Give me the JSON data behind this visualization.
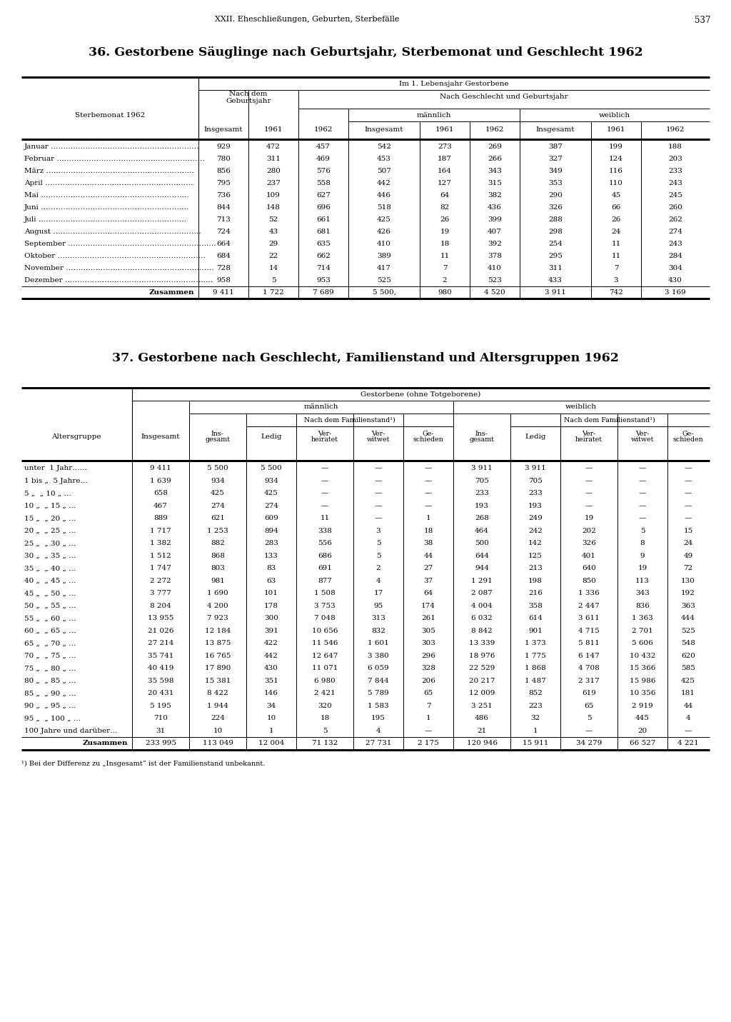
{
  "page_header": "XXII. Eheschließungen, Geburten, Sterbefälle",
  "page_number": "537",
  "table1_title": "36. Gestorbene Säuglinge nach Geburtsjahr, Sterbemonat und Geschlecht 1962",
  "table1_rows": [
    [
      "Januar",
      "929",
      "472",
      "457",
      "542",
      "273",
      "269",
      "387",
      "199",
      "188"
    ],
    [
      "Februar",
      "780",
      "311",
      "469",
      "453",
      "187",
      "266",
      "327",
      "124",
      "203"
    ],
    [
      "März",
      "856",
      "280",
      "576",
      "507",
      "164",
      "343",
      "349",
      "116",
      "233"
    ],
    [
      "April",
      "795",
      "237",
      "558",
      "442",
      "127",
      "315",
      "353",
      "110",
      "243"
    ],
    [
      "Mai",
      "736",
      "109",
      "627",
      "446",
      "64",
      "382",
      "290",
      "45",
      "245"
    ],
    [
      "Juni",
      "844",
      "148",
      "696",
      "518",
      "82",
      "436",
      "326",
      "66",
      "260"
    ],
    [
      "Juli",
      "713",
      "52",
      "661",
      "425",
      "26",
      "399",
      "288",
      "26",
      "262"
    ],
    [
      "August",
      "724",
      "43",
      "681",
      "426",
      "19",
      "407",
      "298",
      "24",
      "274"
    ],
    [
      "September",
      "664",
      "29",
      "635",
      "410",
      "18",
      "392",
      "254",
      "11",
      "243"
    ],
    [
      "Oktober",
      "684",
      "22",
      "662",
      "389",
      "11",
      "378",
      "295",
      "11",
      "284"
    ],
    [
      "November",
      "728",
      "14",
      "714",
      "417",
      "7",
      "410",
      "311",
      "7",
      "304"
    ],
    [
      "Dezember",
      "958",
      "5",
      "953",
      "525",
      "2",
      "523",
      "433",
      "3",
      "430"
    ]
  ],
  "table1_sum": [
    "Zusammen",
    "9 411",
    "1 722",
    "7 689",
    "5 500,",
    "980",
    "4 520",
    "3 911",
    "742",
    "3 169"
  ],
  "table2_title": "37. Gestorbene nach Geschlecht, Familienstand und Altersgruppen 1962",
  "table2_rows": [
    [
      "unter  1 Jahr……",
      "9 411",
      "5 500",
      "5 500",
      "—",
      "—",
      "—",
      "3 911",
      "3 911",
      "—",
      "—",
      "—"
    ],
    [
      "1 bis „  5 Jahre…",
      "1 639",
      "934",
      "934",
      "—",
      "—",
      "—",
      "705",
      "705",
      "—",
      "—",
      "—"
    ],
    [
      "5 „  „ 10 „ …",
      "658",
      "425",
      "425",
      "—",
      "—",
      "—",
      "233",
      "233",
      "—",
      "—",
      "—"
    ],
    [
      "10 „  „ 15 „ …",
      "467",
      "274",
      "274",
      "—",
      "—",
      "—",
      "193",
      "193",
      "—",
      "—",
      "—"
    ],
    [
      "15 „  „ 20 „ …",
      "889",
      "621",
      "609",
      "11",
      "—",
      "1",
      "268",
      "249",
      "19",
      "—",
      "—"
    ],
    [
      "20 „  „ 25 „ …",
      "1 717",
      "1 253",
      "894",
      "338",
      "3",
      "18",
      "464",
      "242",
      "202",
      "5",
      "15"
    ],
    [
      "25 „  „ 30 „ …",
      "1 382",
      "882",
      "283",
      "556",
      "5",
      "38",
      "500",
      "142",
      "326",
      "8",
      "24"
    ],
    [
      "30 „  „ 35 „ …",
      "1 512",
      "868",
      "133",
      "686",
      "5",
      "44",
      "644",
      "125",
      "401",
      "9",
      "49"
    ],
    [
      "35 „  „ 40 „ …",
      "1 747",
      "803",
      "83",
      "691",
      "2",
      "27",
      "944",
      "213",
      "640",
      "19",
      "72"
    ],
    [
      "40 „  „ 45 „ …",
      "2 272",
      "981",
      "63",
      "877",
      "4",
      "37",
      "1 291",
      "198",
      "850",
      "113",
      "130"
    ],
    [
      "45 „  „ 50 „ …",
      "3 777",
      "1 690",
      "101",
      "1 508",
      "17",
      "64",
      "2 087",
      "216",
      "1 336",
      "343",
      "192"
    ],
    [
      "50 „  „ 55 „ …",
      "8 204",
      "4 200",
      "178",
      "3 753",
      "95",
      "174",
      "4 004",
      "358",
      "2 447",
      "836",
      "363"
    ],
    [
      "55 „  „ 60 „ …",
      "13 955",
      "7 923",
      "300",
      "7 048",
      "313",
      "261",
      "6 032",
      "614",
      "3 611",
      "1 363",
      "444"
    ],
    [
      "60 „  „ 65 „ …",
      "21 026",
      "12 184",
      "391",
      "10 656",
      "832",
      "305",
      "8 842",
      "901",
      "4 715",
      "2 701",
      "525"
    ],
    [
      "65 „  „ 70 „ …",
      "27 214",
      "13 875",
      "422",
      "11 546",
      "1 601",
      "303",
      "13 339",
      "1 373",
      "5 811",
      "5 606",
      "548"
    ],
    [
      "70 „  „ 75 „ …",
      "35 741",
      "16 765",
      "442",
      "12 647",
      "3 380",
      "296",
      "18 976",
      "1 775",
      "6 147",
      "10 432",
      "620"
    ],
    [
      "75 „  „ 80 „ …",
      "40 419",
      "17 890",
      "430",
      "11 071",
      "6 059",
      "328",
      "22 529",
      "1 868",
      "4 708",
      "15 366",
      "585"
    ],
    [
      "80 „  „ 85 „ …",
      "35 598",
      "15 381",
      "351",
      "6 980",
      "7 844",
      "206",
      "20 217",
      "1 487",
      "2 317",
      "15 986",
      "425"
    ],
    [
      "85 „  „ 90 „ …",
      "20 431",
      "8 422",
      "146",
      "2 421",
      "5 789",
      "65",
      "12 009",
      "852",
      "619",
      "10 356",
      "181"
    ],
    [
      "90 „  „ 95 „ …",
      "5 195",
      "1 944",
      "34",
      "320",
      "1 583",
      "7",
      "3 251",
      "223",
      "65",
      "2 919",
      "44"
    ],
    [
      "95 „  „ 100 „ …",
      "710",
      "224",
      "10",
      "18",
      "195",
      "1",
      "486",
      "32",
      "5",
      "445",
      "4"
    ],
    [
      "100 Jahre und darüber…",
      "31",
      "10",
      "1",
      "5",
      "4",
      "—",
      "21",
      "1",
      "—",
      "20",
      "—"
    ]
  ],
  "table2_sum": [
    "Zusammen",
    "233 995",
    "113 049",
    "12 004",
    "71 132",
    "27 731",
    "2 175",
    "120 946",
    "15 911",
    "34 279",
    "66 527",
    "4 221"
  ],
  "table2_footnote": "¹) Bei der Differenz zu „Insgesamt“ ist der Familienstand unbekannt.",
  "bg_color": "#ffffff",
  "text_color": "#000000",
  "line_color": "#000000"
}
